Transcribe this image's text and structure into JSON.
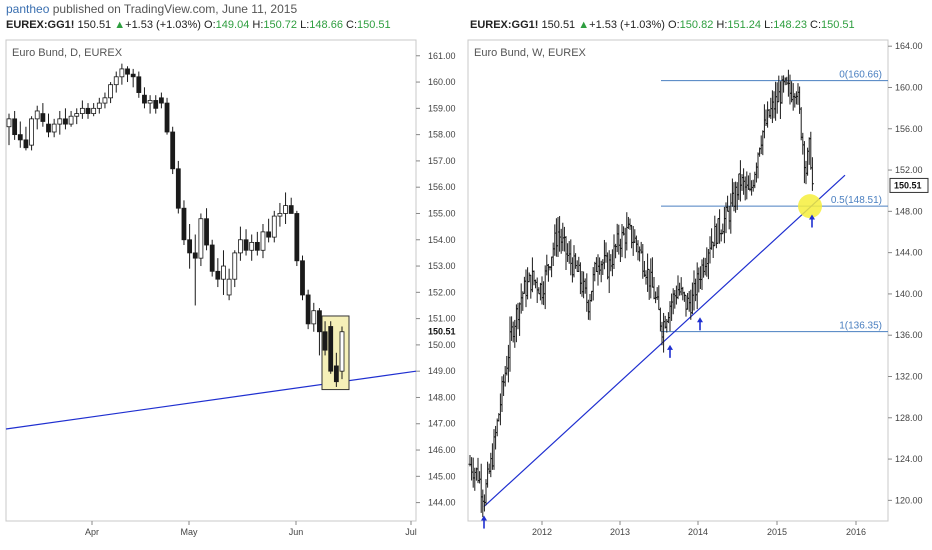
{
  "header": {
    "user": "pantheo",
    "published": "published on TradingView.com, June 11, 2015"
  },
  "left_quote": {
    "symbol": "EUREX:GG1!",
    "last": "150.51",
    "change": "+1.53 (+1.03%)",
    "o_label": "O:",
    "o": "149.04",
    "h_label": "H:",
    "h": "150.72",
    "l_label": "L:",
    "l": "148.66",
    "c_label": "C:",
    "c": "150.51"
  },
  "right_quote": {
    "symbol": "EUREX:GG1!",
    "last": "150.51",
    "change": "+1.53 (+1.03%)",
    "o_label": "O:",
    "o": "150.82",
    "h_label": "H:",
    "h": "151.24",
    "l_label": "L:",
    "l": "148.23",
    "c_label": "C:",
    "c": "150.51"
  },
  "colors": {
    "trendline": "#1f2fd0",
    "fib": "#4a7fc0",
    "highlight_box": "#f5f0b8",
    "highlight_circle": "#f6ee3c",
    "candle": "#1a1a1a"
  },
  "chart_data": [
    {
      "type": "candlestick",
      "title": "Euro Bund, D, EUREX",
      "x_tick_labels": [
        "Apr",
        "May",
        "Jun",
        "Jul"
      ],
      "y_tick_labels": [
        "144.00",
        "145.00",
        "146.00",
        "147.00",
        "148.00",
        "149.00",
        "150.00",
        "151.00",
        "152.00",
        "153.00",
        "154.00",
        "155.00",
        "156.00",
        "157.00",
        "158.00",
        "159.00",
        "160.00",
        "161.00"
      ],
      "ylim": [
        143.3,
        161.6
      ],
      "last_price_label": "150.51",
      "candles": [
        {
          "o": 158.3,
          "h": 158.8,
          "l": 157.6,
          "c": 158.6
        },
        {
          "o": 158.6,
          "h": 158.9,
          "l": 157.8,
          "c": 158.0
        },
        {
          "o": 158.0,
          "h": 158.5,
          "l": 157.5,
          "c": 157.8
        },
        {
          "o": 157.8,
          "h": 158.3,
          "l": 157.4,
          "c": 157.5
        },
        {
          "o": 157.6,
          "h": 158.7,
          "l": 157.4,
          "c": 158.6
        },
        {
          "o": 158.6,
          "h": 159.1,
          "l": 158.2,
          "c": 158.9
        },
        {
          "o": 158.8,
          "h": 159.2,
          "l": 158.3,
          "c": 158.5
        },
        {
          "o": 158.4,
          "h": 158.8,
          "l": 157.9,
          "c": 158.1
        },
        {
          "o": 158.1,
          "h": 158.6,
          "l": 157.9,
          "c": 158.4
        },
        {
          "o": 158.4,
          "h": 158.9,
          "l": 158.0,
          "c": 158.6
        },
        {
          "o": 158.6,
          "h": 159.0,
          "l": 158.2,
          "c": 158.4
        },
        {
          "o": 158.4,
          "h": 158.9,
          "l": 158.3,
          "c": 158.7
        },
        {
          "o": 158.7,
          "h": 159.0,
          "l": 158.4,
          "c": 158.8
        },
        {
          "o": 158.8,
          "h": 159.3,
          "l": 158.6,
          "c": 159.0
        },
        {
          "o": 159.0,
          "h": 159.2,
          "l": 158.6,
          "c": 158.8
        },
        {
          "o": 158.8,
          "h": 159.2,
          "l": 158.7,
          "c": 159.0
        },
        {
          "o": 159.0,
          "h": 159.4,
          "l": 158.8,
          "c": 159.2
        },
        {
          "o": 159.2,
          "h": 159.6,
          "l": 159.0,
          "c": 159.4
        },
        {
          "o": 159.4,
          "h": 160.0,
          "l": 159.2,
          "c": 159.9
        },
        {
          "o": 159.9,
          "h": 160.4,
          "l": 159.6,
          "c": 160.2
        },
        {
          "o": 160.2,
          "h": 160.7,
          "l": 159.9,
          "c": 160.5
        },
        {
          "o": 160.5,
          "h": 160.6,
          "l": 160.0,
          "c": 160.3
        },
        {
          "o": 160.3,
          "h": 160.5,
          "l": 159.8,
          "c": 160.2
        },
        {
          "o": 160.2,
          "h": 160.4,
          "l": 159.4,
          "c": 159.6
        },
        {
          "o": 159.5,
          "h": 159.8,
          "l": 159.0,
          "c": 159.2
        },
        {
          "o": 159.2,
          "h": 159.5,
          "l": 158.8,
          "c": 159.3
        },
        {
          "o": 159.3,
          "h": 159.5,
          "l": 158.8,
          "c": 159.0
        },
        {
          "o": 159.4,
          "h": 159.6,
          "l": 159.0,
          "c": 159.2
        },
        {
          "o": 159.2,
          "h": 159.4,
          "l": 158.0,
          "c": 158.1
        },
        {
          "o": 158.1,
          "h": 158.3,
          "l": 156.5,
          "c": 156.7
        },
        {
          "o": 156.7,
          "h": 157.0,
          "l": 155.0,
          "c": 155.2
        },
        {
          "o": 155.2,
          "h": 155.5,
          "l": 153.8,
          "c": 154.0
        },
        {
          "o": 154.0,
          "h": 154.6,
          "l": 152.9,
          "c": 153.5
        },
        {
          "o": 153.5,
          "h": 154.2,
          "l": 151.5,
          "c": 153.3
        },
        {
          "o": 153.3,
          "h": 155.0,
          "l": 153.0,
          "c": 154.8
        },
        {
          "o": 154.8,
          "h": 155.2,
          "l": 153.6,
          "c": 153.8
        },
        {
          "o": 153.8,
          "h": 154.0,
          "l": 152.6,
          "c": 152.8
        },
        {
          "o": 152.8,
          "h": 153.3,
          "l": 152.2,
          "c": 152.5
        },
        {
          "o": 152.5,
          "h": 153.6,
          "l": 151.9,
          "c": 153.0
        },
        {
          "o": 151.9,
          "h": 152.9,
          "l": 151.7,
          "c": 152.5
        },
        {
          "o": 152.5,
          "h": 153.6,
          "l": 152.2,
          "c": 153.5
        },
        {
          "o": 153.5,
          "h": 154.5,
          "l": 153.2,
          "c": 154.0
        },
        {
          "o": 154.0,
          "h": 154.4,
          "l": 153.4,
          "c": 153.6
        },
        {
          "o": 153.6,
          "h": 154.2,
          "l": 153.2,
          "c": 153.9
        },
        {
          "o": 153.9,
          "h": 154.3,
          "l": 153.4,
          "c": 153.6
        },
        {
          "o": 153.6,
          "h": 154.6,
          "l": 153.3,
          "c": 154.3
        },
        {
          "o": 154.3,
          "h": 154.8,
          "l": 153.9,
          "c": 154.1
        },
        {
          "o": 154.1,
          "h": 155.1,
          "l": 153.9,
          "c": 154.9
        },
        {
          "o": 154.9,
          "h": 155.4,
          "l": 154.5,
          "c": 155.0
        },
        {
          "o": 155.0,
          "h": 155.8,
          "l": 154.6,
          "c": 155.3
        },
        {
          "o": 155.3,
          "h": 155.6,
          "l": 155.0,
          "c": 155.0
        },
        {
          "o": 155.0,
          "h": 155.1,
          "l": 153.0,
          "c": 153.2
        },
        {
          "o": 153.2,
          "h": 153.4,
          "l": 151.7,
          "c": 151.9
        },
        {
          "o": 151.9,
          "h": 152.1,
          "l": 150.6,
          "c": 150.8
        },
        {
          "o": 150.8,
          "h": 151.6,
          "l": 150.5,
          "c": 151.3
        },
        {
          "o": 151.3,
          "h": 151.4,
          "l": 149.6,
          "c": 150.5
        },
        {
          "o": 150.5,
          "h": 150.9,
          "l": 149.6,
          "c": 149.8
        },
        {
          "o": 150.7,
          "h": 150.9,
          "l": 148.9,
          "c": 149.0
        },
        {
          "o": 149.2,
          "h": 149.7,
          "l": 148.4,
          "c": 148.6
        },
        {
          "o": 149.0,
          "h": 150.7,
          "l": 148.7,
          "c": 150.5
        }
      ],
      "trendline": {
        "x0": 0,
        "y0": 146.8,
        "x1": 1,
        "y1": 149.0
      },
      "highlight_box": {
        "price_top": 151.1,
        "price_bottom": 148.3
      }
    },
    {
      "type": "candlestick",
      "title": "Euro Bund, W, EUREX",
      "x_tick_labels": [
        "2012",
        "2013",
        "2014",
        "2015",
        "2016"
      ],
      "y_tick_labels": [
        "120.00",
        "124.00",
        "128.00",
        "132.00",
        "136.00",
        "140.00",
        "144.00",
        "148.00",
        "152.00",
        "156.00",
        "160.00",
        "164.00"
      ],
      "ylim": [
        118.0,
        164.6
      ],
      "last_price_label": "150.51",
      "fib_levels": [
        {
          "label": "0(160.66)",
          "price": 160.66
        },
        {
          "label": "0.5(148.51)",
          "price": 148.51
        },
        {
          "label": "1(136.35)",
          "price": 136.35
        }
      ],
      "path_points": [
        [
          0,
          123.5
        ],
        [
          8,
          122.5
        ],
        [
          14,
          120.3
        ],
        [
          22,
          124.0
        ],
        [
          32,
          130.5
        ],
        [
          42,
          136.5
        ],
        [
          52,
          140.0
        ],
        [
          62,
          141.5
        ],
        [
          72,
          140.5
        ],
        [
          80,
          143.5
        ],
        [
          88,
          146.0
        ],
        [
          98,
          143.5
        ],
        [
          108,
          142.0
        ],
        [
          118,
          139.0
        ],
        [
          128,
          143.5
        ],
        [
          138,
          142.5
        ],
        [
          148,
          145.0
        ],
        [
          158,
          146.0
        ],
        [
          166,
          145.0
        ],
        [
          176,
          142.5
        ],
        [
          184,
          140.0
        ],
        [
          192,
          136.8
        ],
        [
          200,
          139.0
        ],
        [
          208,
          140.5
        ],
        [
          216,
          139.0
        ],
        [
          222,
          139.3
        ],
        [
          230,
          142.0
        ],
        [
          240,
          145.0
        ],
        [
          250,
          146.5
        ],
        [
          260,
          148.0
        ],
        [
          270,
          151.0
        ],
        [
          280,
          149.5
        ],
        [
          290,
          155.0
        ],
        [
          300,
          157.5
        ],
        [
          308,
          159.0
        ],
        [
          314,
          160.0
        ],
        [
          320,
          159.5
        ],
        [
          326,
          160.3
        ],
        [
          330,
          157.0
        ],
        [
          336,
          152.0
        ],
        [
          340,
          154.5
        ],
        [
          343,
          149.5
        ]
      ],
      "trendline": {
        "x0": 14,
        "y0": 119.4,
        "x1": 375,
        "y1": 151.5
      },
      "support_arrows": [
        14,
        200,
        230,
        342
      ],
      "highlight_circle": {
        "x": 342,
        "price": 148.5
      }
    }
  ]
}
